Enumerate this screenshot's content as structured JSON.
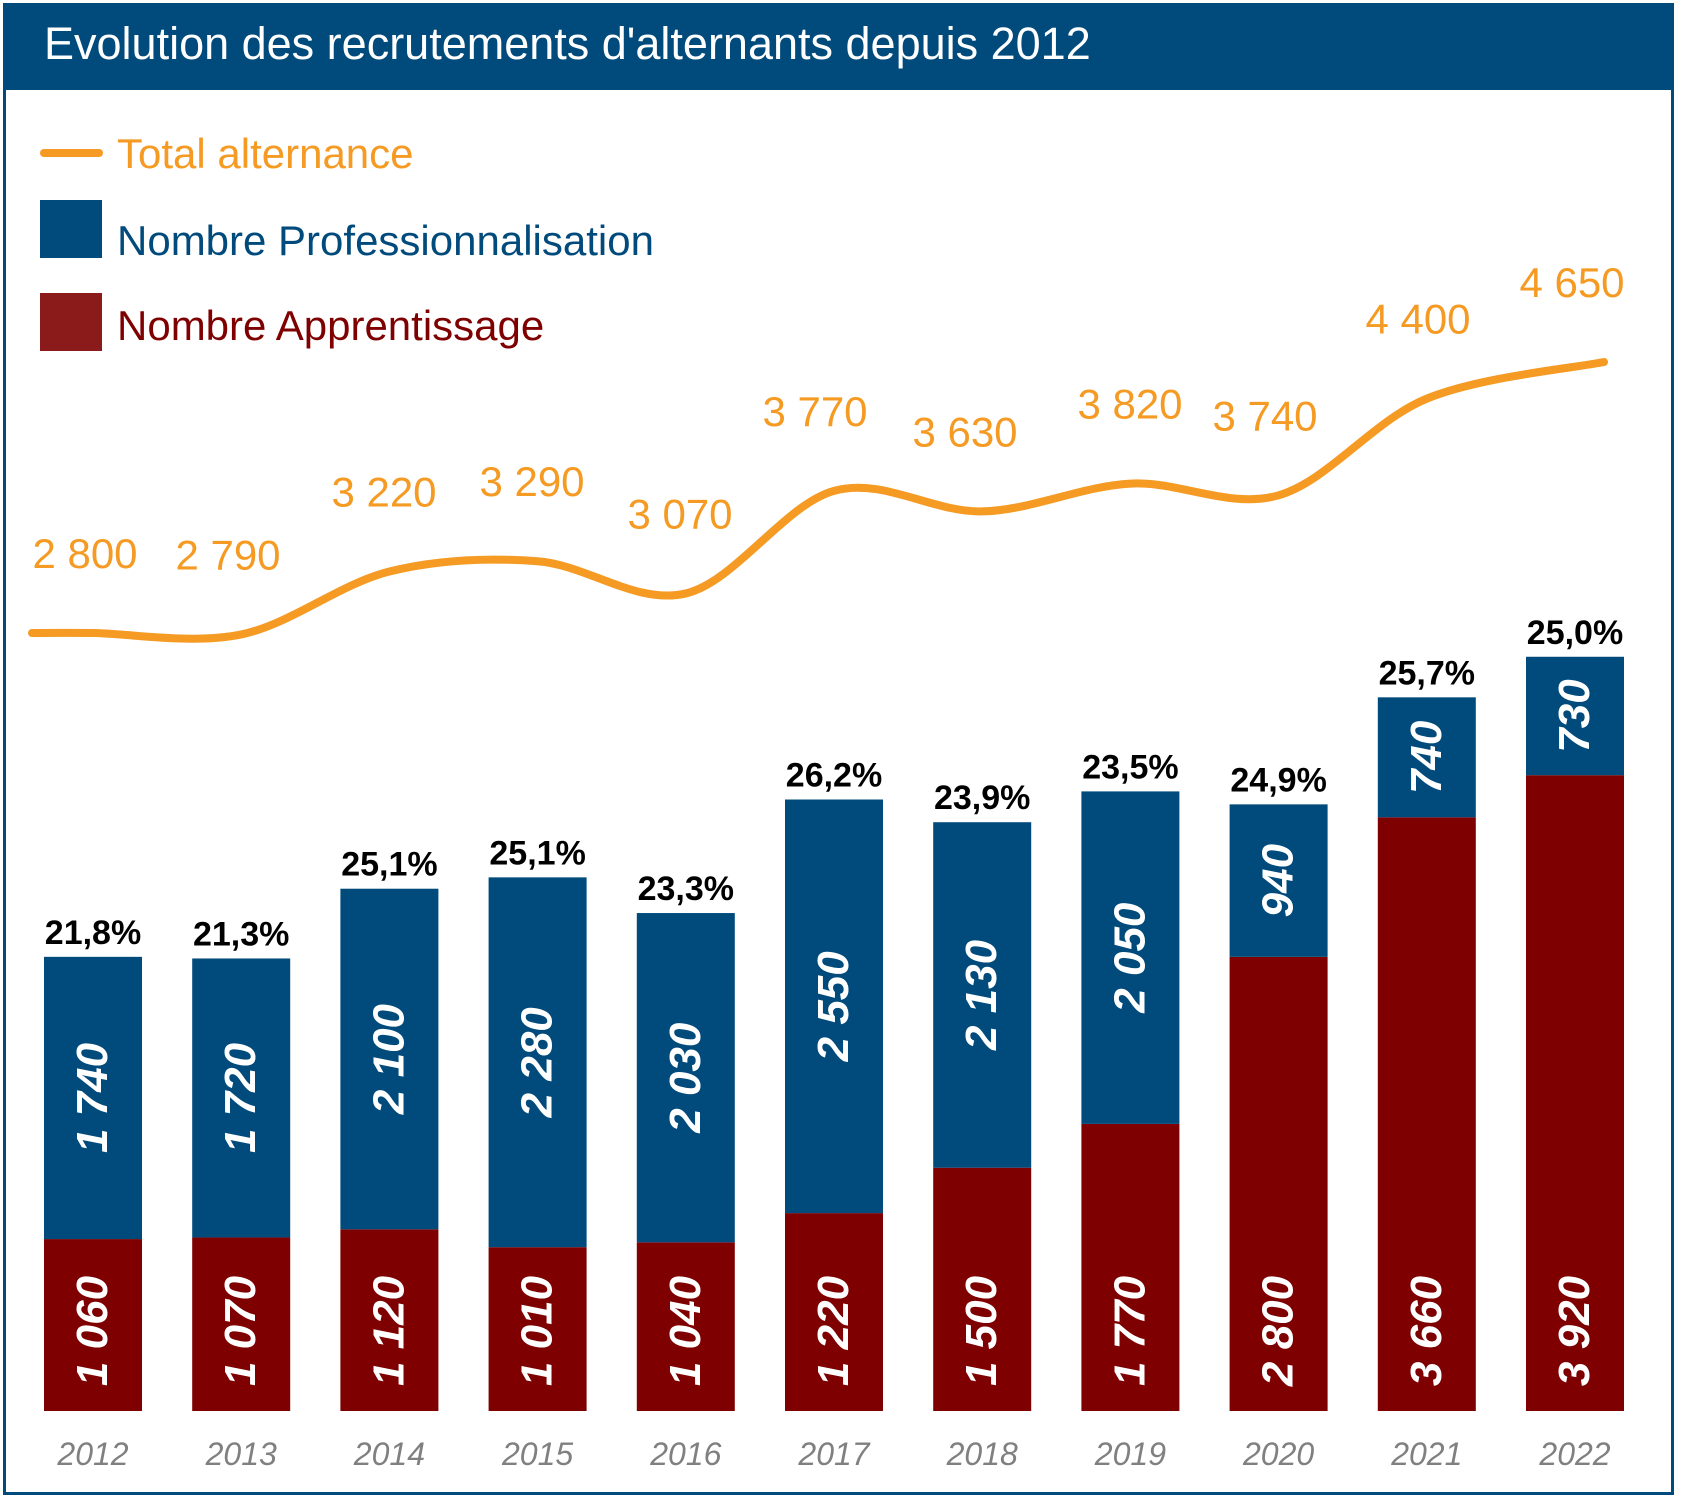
{
  "title": "Evolution des recrutements d'alternants depuis 2012",
  "colors": {
    "header": "#004a7c",
    "total_line": "#f59a23",
    "professionnalisation": "#004a7c",
    "apprentissage": "#7e0000",
    "percent_text": "#000000",
    "year_text": "#808080"
  },
  "chart_data": {
    "type": "bar",
    "stacked": true,
    "categories": [
      "2012",
      "2013",
      "2014",
      "2015",
      "2016",
      "2017",
      "2018",
      "2019",
      "2020",
      "2021",
      "2022"
    ],
    "series": [
      {
        "name": "Nombre Apprentissage",
        "type": "bar",
        "values": [
          1060,
          1070,
          1120,
          1010,
          1040,
          1220,
          1500,
          1770,
          2800,
          3660,
          3920
        ],
        "labels": [
          "1 060",
          "1 070",
          "1 120",
          "1 010",
          "1 040",
          "1 220",
          "1 500",
          "1 770",
          "2 800",
          "3 660",
          "3 920"
        ]
      },
      {
        "name": "Nombre Professionnalisation",
        "type": "bar",
        "values": [
          1740,
          1720,
          2100,
          2280,
          2030,
          2550,
          2130,
          2050,
          940,
          740,
          730
        ],
        "labels": [
          "1 740",
          "1 720",
          "2 100",
          "2 280",
          "2 030",
          "2 550",
          "2 130",
          "2 050",
          "940",
          "740",
          "730"
        ]
      },
      {
        "name": "Total alternance",
        "type": "line",
        "values": [
          2800,
          2790,
          3220,
          3290,
          3070,
          3770,
          3630,
          3820,
          3740,
          4400,
          4650
        ],
        "labels": [
          "2 800",
          "2 790",
          "3 220",
          "3 290",
          "3 070",
          "3 770",
          "3 630",
          "3 820",
          "3 740",
          "4 400",
          "4 650"
        ]
      }
    ],
    "bar_top_labels": [
      "21,8%",
      "21,3%",
      "25,1%",
      "25,1%",
      "23,3%",
      "26,2%",
      "23,9%",
      "23,5%",
      "24,9%",
      "25,7%",
      "25,0%"
    ],
    "legend": [
      "Total alternance",
      "Nombre Professionnalisation",
      "Nombre Apprentissage"
    ],
    "legend_position": "top-left",
    "grid": false
  }
}
